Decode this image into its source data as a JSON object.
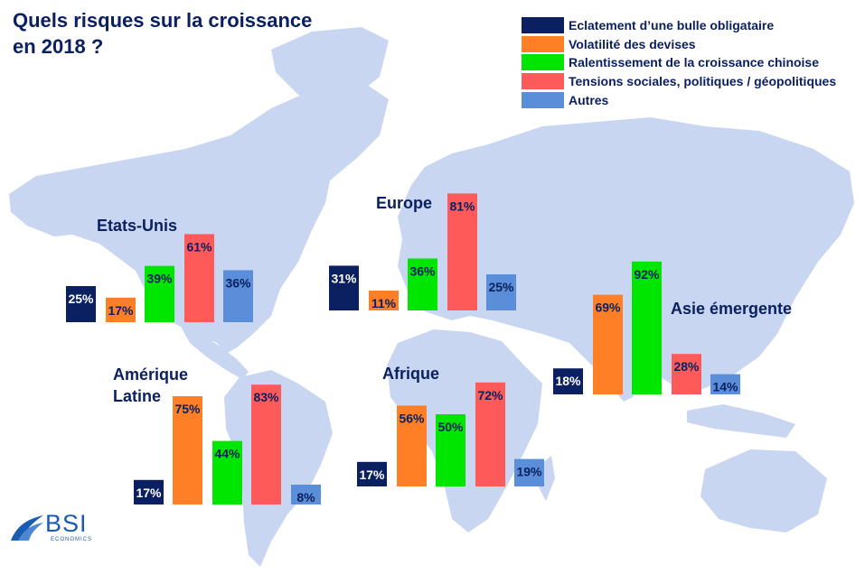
{
  "title_line1": "Quels risques sur la croissance",
  "title_line2": "en 2018 ?",
  "colors": {
    "background": "#ffffff",
    "map": "#c8d6f2",
    "title": "#0b2060",
    "series": [
      "#0b2060",
      "#ff7f27",
      "#00e600",
      "#ff5a5a",
      "#5b8ed9"
    ]
  },
  "logo": {
    "text": "BSI",
    "subtext": "ECONOMICS",
    "icon": "bsi-wave-icon"
  },
  "chart_data": {
    "type": "bar",
    "unit": "%",
    "series_names": [
      "Eclatement d’une bulle obligataire",
      "Volatilité des devises",
      "Ralentissement de la croissance chinoise",
      "Tensions sociales, politiques / géopolitiques",
      "Autres"
    ],
    "regions": [
      {
        "name": "Etats-Unis",
        "values": [
          25,
          17,
          39,
          61,
          36
        ],
        "labels": [
          "25%",
          "17%",
          "39%",
          "61%",
          "36%"
        ]
      },
      {
        "name": "Europe",
        "values": [
          31,
          11,
          36,
          81,
          25
        ],
        "labels": [
          "31%",
          "11%",
          "36%",
          "81%",
          "25%"
        ]
      },
      {
        "name": "Asie émergente",
        "values": [
          18,
          69,
          92,
          28,
          14
        ],
        "labels": [
          "18%",
          "69%",
          "92%",
          "28%",
          "14%"
        ]
      },
      {
        "name": "Amérique Latine",
        "values": [
          17,
          75,
          44,
          83,
          8
        ],
        "labels": [
          "17%",
          "75%",
          "44%",
          "83%",
          "8%"
        ]
      },
      {
        "name": "Afrique",
        "values": [
          17,
          56,
          50,
          72,
          19
        ],
        "labels": [
          "17%",
          "56%",
          "50%",
          "72%",
          "19%"
        ]
      }
    ]
  }
}
